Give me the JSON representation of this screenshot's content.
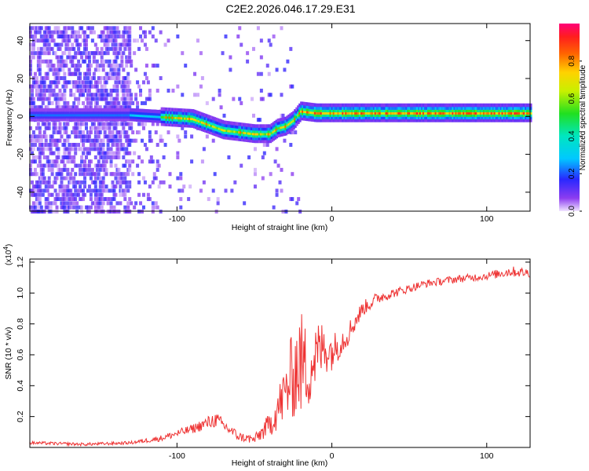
{
  "title": "C2E2.2026.046.17.29.E31",
  "chart_data": [
    {
      "type": "heatmap",
      "xlabel": "Height of straight line (km)",
      "ylabel": "Frequency (Hz)",
      "xlim": [
        -195,
        128
      ],
      "ylim": [
        -50,
        49
      ],
      "xticks": [
        -100,
        0,
        100
      ],
      "xtick_labels": [
        "-100",
        "0",
        "100"
      ],
      "yticks": [
        -40,
        -20,
        0,
        20,
        40
      ],
      "ytick_labels": [
        "-40",
        "-20",
        "0",
        "20",
        "40"
      ],
      "ridge_km": [
        -195,
        -160,
        -130,
        -110,
        -90,
        -80,
        -70,
        -60,
        -50,
        -40,
        -35,
        -30,
        -25,
        -20,
        -10,
        0,
        20,
        60,
        100,
        128
      ],
      "ridge_hz": [
        1,
        1,
        1,
        0,
        -1,
        -4,
        -7,
        -8,
        -9,
        -9,
        -6,
        -5,
        -2,
        3,
        2,
        2,
        2,
        2,
        2,
        2
      ],
      "colorbar": {
        "label": "Normalized spectral amplitude",
        "range": [
          0,
          1
        ],
        "ticks": [
          0.0,
          0.2,
          0.4,
          0.6,
          0.8
        ],
        "tick_labels": [
          "0.0",
          "0.2",
          "0.4",
          "0.6",
          "0.8"
        ]
      }
    },
    {
      "type": "line",
      "xlabel": "Height of straight line (km)",
      "ylabel": "SNR (10 * v/v)",
      "scale_label": "(x10",
      "scale_exponent": "4",
      "scale_close": ")",
      "xlim": [
        -195,
        128
      ],
      "ylim": [
        0,
        1.22
      ],
      "xticks": [
        -100,
        0,
        100
      ],
      "xtick_labels": [
        "-100",
        "0",
        "100"
      ],
      "yticks": [
        0.2,
        0.4,
        0.6,
        0.8,
        1.0,
        1.2
      ],
      "ytick_labels": [
        "0.2",
        "0.4",
        "0.6",
        "0.8",
        "1.0",
        "1.2"
      ],
      "color": "#ee3333",
      "series": [
        {
          "name": "SNR",
          "x": [
            -195,
            -160,
            -130,
            -110,
            -90,
            -75,
            -60,
            -50,
            -40,
            -30,
            -25,
            -20,
            -15,
            -10,
            -5,
            0,
            10,
            20,
            30,
            40,
            60,
            80,
            100,
            115,
            128
          ],
          "y": [
            0.03,
            0.02,
            0.03,
            0.06,
            0.12,
            0.18,
            0.07,
            0.05,
            0.15,
            0.35,
            0.48,
            0.55,
            0.5,
            0.6,
            0.65,
            0.62,
            0.73,
            0.9,
            0.97,
            1.0,
            1.06,
            1.09,
            1.11,
            1.14,
            1.13
          ],
          "noise": [
            0.01,
            0.01,
            0.01,
            0.02,
            0.03,
            0.05,
            0.03,
            0.03,
            0.08,
            0.2,
            0.3,
            0.35,
            0.25,
            0.22,
            0.18,
            0.12,
            0.08,
            0.05,
            0.04,
            0.03,
            0.025,
            0.025,
            0.025,
            0.035,
            0.03
          ]
        }
      ]
    }
  ]
}
